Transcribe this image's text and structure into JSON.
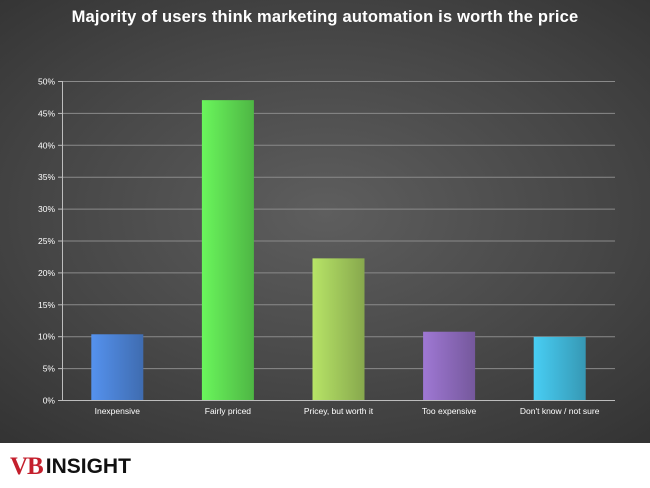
{
  "chart_data": {
    "type": "bar",
    "title": "Majority of users think marketing automation is worth the price",
    "xlabel": "",
    "ylabel": "",
    "categories": [
      "Inexpensive",
      "Fairly priced",
      "Pricey, but worth it",
      "Too expensive",
      "Don't know / not sure"
    ],
    "values": [
      10.3,
      47.0,
      22.2,
      10.7,
      9.9
    ],
    "ylim": [
      0,
      50
    ],
    "yticks": [
      0,
      5,
      10,
      15,
      20,
      25,
      30,
      35,
      40,
      45,
      50
    ],
    "ytick_labels": [
      "0%",
      "5%",
      "10%",
      "15%",
      "20%",
      "25%",
      "30%",
      "35%",
      "40%",
      "45%",
      "50%"
    ],
    "grid": true,
    "bar_colors": [
      "#4a7fcf",
      "#5cd650",
      "#9fc65a",
      "#8a68b8",
      "#3fb3d4"
    ],
    "legend": "none"
  },
  "brand": {
    "mark": "VB",
    "word": "INSIGHT",
    "mark_color": "#c41f2c"
  }
}
